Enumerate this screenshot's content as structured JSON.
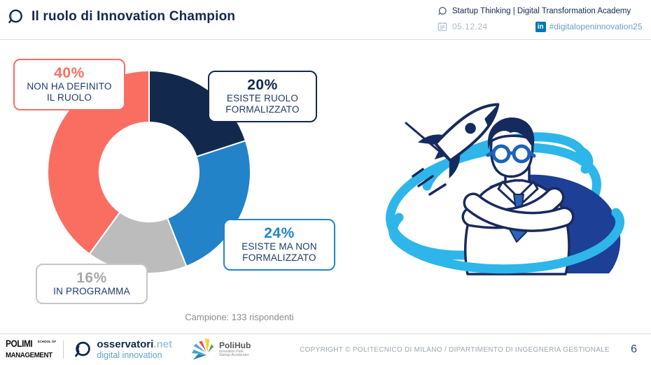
{
  "header": {
    "title": "Il ruolo di Innovation Champion",
    "program": "Startup Thinking | Digital Transformation Academy",
    "date": "05.12.24",
    "linkedin_label": "in",
    "hashtag": "#digitalopeninnovation25"
  },
  "chart_data": {
    "type": "pie",
    "subtype": "donut",
    "title": "Il ruolo di Innovation Champion",
    "sample_note": "Campione: 133 rispondenti",
    "start_angle_deg": 0,
    "clockwise": true,
    "inner_radius_ratio": 0.49,
    "segments": [
      {
        "label": "ESISTE RUOLO FORMALIZZATO",
        "value": 20,
        "color": "#12294D"
      },
      {
        "label": "ESISTE MA NON FORMALIZZATO",
        "value": 24,
        "color": "#2383C9"
      },
      {
        "label": "IN PROGRAMMA",
        "value": 16,
        "color": "#BCBCBC"
      },
      {
        "label": "NON HA DEFINITO IL RUOLO",
        "value": 40,
        "color": "#FA6E62"
      }
    ]
  },
  "callouts": [
    {
      "pct": "40%",
      "lines": [
        "NON HA DEFINITO",
        "IL RUOLO"
      ],
      "pct_color": "#FA6E62",
      "border_color": "#FA6E62"
    },
    {
      "pct": "20%",
      "lines": [
        "ESISTE RUOLO",
        "FORMALIZZATO"
      ],
      "pct_color": "#12294D",
      "border_color": "#12294D"
    },
    {
      "pct": "24%",
      "lines": [
        "ESISTE MA NON",
        "FORMALIZZATO"
      ],
      "pct_color": "#2383C9",
      "border_color": "#2383C9"
    },
    {
      "pct": "16%",
      "lines": [
        "IN PROGRAMMA"
      ],
      "pct_color": "#A9A9A9",
      "border_color": "#C6C6C6"
    }
  ],
  "footer": {
    "polimi": {
      "line1": "POLIMI",
      "line1b": "SCHOOL OF",
      "line2": "MANAGEMENT"
    },
    "osservatori": {
      "name": "osservatori",
      "tld": ".net",
      "sub": "digital innovation"
    },
    "polihub": {
      "name": "PoliHub",
      "sub1": "Innovation Park",
      "sub2": "Startup Accelerator"
    },
    "copyright": "COPYRIGHT © POLITECNICO DI MILANO / DIPARTIMENTO DI INGEGNERIA GESTIONALE",
    "page_number": "6"
  }
}
